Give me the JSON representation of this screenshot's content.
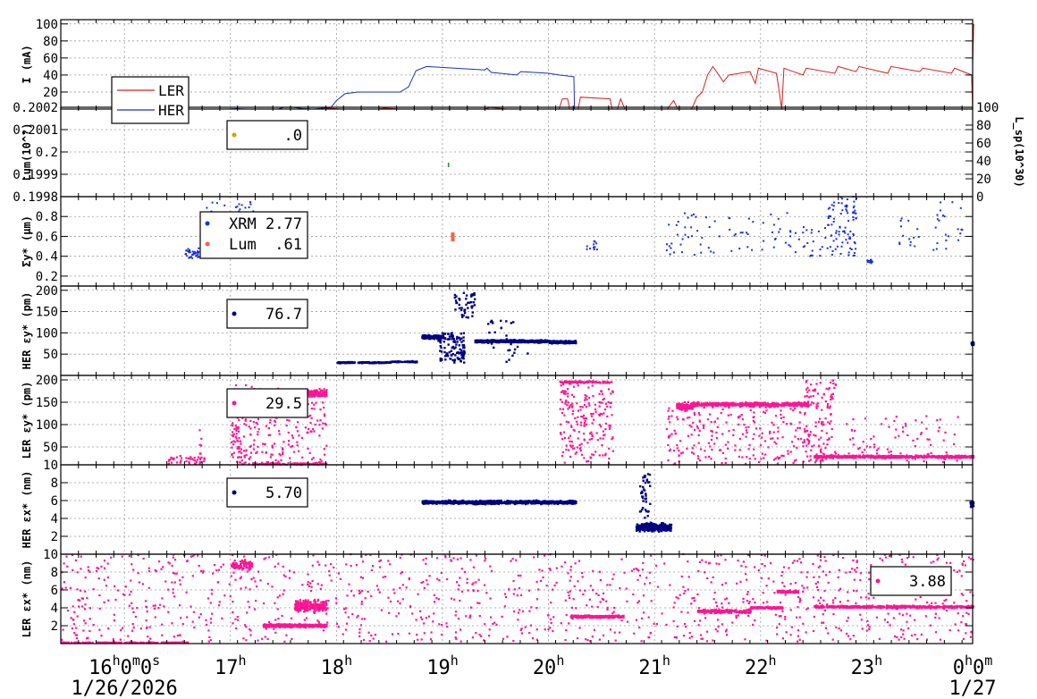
{
  "chart_data": {
    "type": "scatter",
    "x_axis": {
      "start_time": "16:00",
      "end_time": "24:00",
      "tick_labels": [
        {
          "t": 0,
          "main": "16",
          "sup1": "h",
          "mid": "0",
          "sup2": "m",
          "mid2": "0",
          "sup3": "s"
        },
        {
          "t": 1,
          "main": "17",
          "sup1": "h"
        },
        {
          "t": 2,
          "main": "18",
          "sup1": "h"
        },
        {
          "t": 3,
          "main": "19",
          "sup1": "h"
        },
        {
          "t": 4,
          "main": "20",
          "sup1": "h"
        },
        {
          "t": 5,
          "main": "21",
          "sup1": "h"
        },
        {
          "t": 6,
          "main": "22",
          "sup1": "h"
        },
        {
          "t": 7,
          "main": "23",
          "sup1": "h"
        },
        {
          "t": 8,
          "main": "0",
          "sup1": "h",
          "mid": "0",
          "sup2": "m"
        }
      ],
      "date_left": "1/26/2026",
      "date_right": "1/27"
    },
    "panels": [
      {
        "id": "current",
        "ylabel": "I (mA)",
        "ylim": [
          0,
          105
        ],
        "yticks": [
          "20",
          "40",
          "60",
          "80",
          "100"
        ],
        "legend": [
          {
            "name": "LER",
            "color": "#d42020"
          },
          {
            "name": "HER",
            "color": "#1a30b8"
          }
        ],
        "series": [
          {
            "name": "HER",
            "color": "#1a30b8",
            "points": [
              [
                -0.6,
                0
              ],
              [
                0.98,
                0
              ],
              [
                1.05,
                0.5
              ],
              [
                1.15,
                0
              ],
              [
                1.45,
                0
              ],
              [
                1.5,
                2
              ],
              [
                1.6,
                2
              ],
              [
                1.68,
                0.5
              ],
              [
                1.78,
                0
              ],
              [
                1.95,
                2
              ],
              [
                2.0,
                10
              ],
              [
                2.08,
                18
              ],
              [
                2.2,
                20
              ],
              [
                2.6,
                20
              ],
              [
                2.68,
                26
              ],
              [
                2.75,
                45
              ],
              [
                2.85,
                50
              ],
              [
                3.4,
                46
              ],
              [
                3.42,
                48
              ],
              [
                3.46,
                43
              ],
              [
                3.7,
                40
              ],
              [
                3.74,
                44
              ],
              [
                4.0,
                42
              ],
              [
                4.1,
                40
              ],
              [
                4.24,
                38
              ],
              [
                4.245,
                0
              ],
              [
                8.0,
                0
              ],
              [
                8.0,
                60
              ],
              [
                8.01,
                100
              ]
            ]
          },
          {
            "name": "LER",
            "color": "#d42020",
            "points": [
              [
                -0.6,
                0
              ],
              [
                1.9,
                0
              ],
              [
                1.92,
                1
              ],
              [
                2.05,
                0
              ],
              [
                2.1,
                0
              ],
              [
                2.4,
                0
              ],
              [
                2.45,
                1
              ],
              [
                2.6,
                0
              ],
              [
                3.4,
                0
              ],
              [
                3.45,
                2
              ],
              [
                3.6,
                0
              ],
              [
                4.1,
                0
              ],
              [
                4.13,
                12
              ],
              [
                4.18,
                12
              ],
              [
                4.2,
                0
              ],
              [
                4.28,
                0
              ],
              [
                4.3,
                14
              ],
              [
                4.58,
                12
              ],
              [
                4.6,
                0
              ],
              [
                4.65,
                0
              ],
              [
                4.68,
                12
              ],
              [
                4.72,
                0
              ],
              [
                5.12,
                0
              ],
              [
                5.18,
                10
              ],
              [
                5.22,
                0
              ],
              [
                5.35,
                0
              ],
              [
                5.4,
                14
              ],
              [
                5.45,
                20
              ],
              [
                5.5,
                40
              ],
              [
                5.55,
                50
              ],
              [
                5.65,
                32
              ],
              [
                5.7,
                40
              ],
              [
                5.9,
                44
              ],
              [
                5.95,
                30
              ],
              [
                5.98,
                48
              ],
              [
                6.15,
                42
              ],
              [
                6.2,
                0
              ],
              [
                6.22,
                48
              ],
              [
                6.4,
                40
              ],
              [
                6.43,
                48
              ],
              [
                6.7,
                42
              ],
              [
                6.73,
                50
              ],
              [
                6.9,
                44
              ],
              [
                6.93,
                50
              ],
              [
                7.2,
                42
              ],
              [
                7.23,
                50
              ],
              [
                7.5,
                44
              ],
              [
                7.53,
                48
              ],
              [
                7.8,
                42
              ],
              [
                7.83,
                48
              ],
              [
                7.99,
                40
              ],
              [
                8.0,
                0
              ],
              [
                8.0,
                50
              ],
              [
                8.01,
                100
              ]
            ]
          }
        ]
      },
      {
        "id": "luminosity",
        "ylabel": "Lum(10^?)",
        "ylim": [
          0.1998,
          0.2002
        ],
        "yticks": [
          "0.2002",
          "0.2001",
          "0.2",
          "0.1999",
          "0.1998"
        ],
        "y2label": "L_sp(10^30)",
        "y2ticks": [
          "0",
          "20",
          "40",
          "60",
          "80",
          "100"
        ],
        "legend_value": ".0",
        "legend_color": "#d4a000",
        "series": [
          {
            "name": "Lsp",
            "color": "#2a8a2a",
            "points": [
              [
                3.05,
                0.19994
              ]
            ]
          }
        ]
      },
      {
        "id": "sigma_y",
        "ylabel": "Σy* (μm)",
        "ylim": [
          0.1,
          1.0
        ],
        "yticks": [
          "0.2",
          "0.4",
          "0.6",
          "0.8"
        ],
        "legend": [
          {
            "name": "XRM",
            "value": "2.77",
            "color": "#1a30d8"
          },
          {
            "name": "Lum",
            "value": ".61",
            "color": "#ff6040"
          }
        ]
      },
      {
        "id": "her_emit_y",
        "ylabel": "HER εy* (pm)",
        "ylim": [
          0,
          210
        ],
        "yticks": [
          "50",
          "100",
          "150",
          "200"
        ],
        "legend_value": "76.7",
        "color": "#000080"
      },
      {
        "id": "ler_emit_y",
        "ylabel": "LER εy* (pm)",
        "ylim": [
          10,
          210
        ],
        "yticks": [
          "10",
          "50",
          "100",
          "150",
          "200"
        ],
        "legend_value": "29.5",
        "color": "#ff1493"
      },
      {
        "id": "her_emit_x",
        "ylabel": "HER εx* (nm)",
        "ylim": [
          0,
          10
        ],
        "yticks": [
          "2",
          "4",
          "6",
          "8"
        ],
        "legend_value": "5.70",
        "color": "#000080"
      },
      {
        "id": "ler_emit_x",
        "ylabel": "LER εx* (nm)",
        "ylim": [
          0,
          10
        ],
        "yticks": [
          "2",
          "4",
          "6",
          "8",
          "10"
        ],
        "legend_value": "3.88",
        "color": "#ff1493"
      }
    ]
  }
}
